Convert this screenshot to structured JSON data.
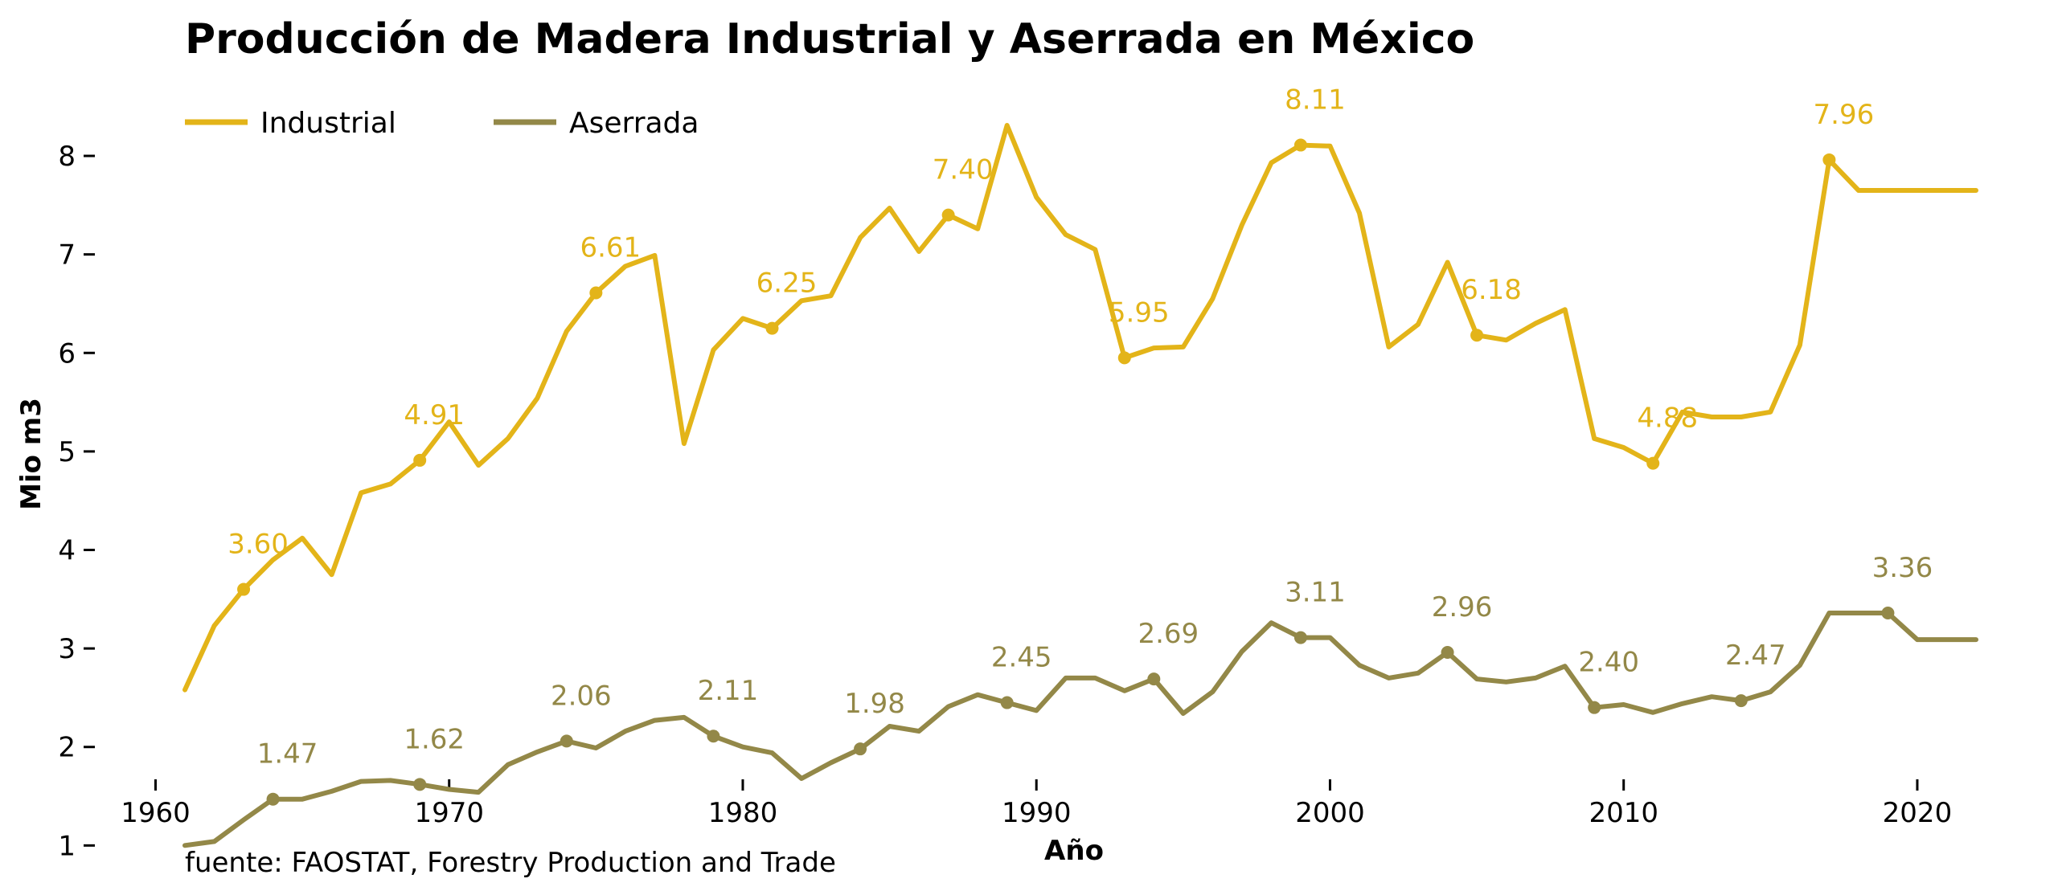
{
  "chart_data": {
    "type": "line",
    "title": "Producción de Madera Industrial y Aserrada en México",
    "xlabel": "Año",
    "ylabel": "Mio m3",
    "source": "fuente: FAOSTAT, Forestry Production and Trade",
    "xlim": [
      1961,
      2022
    ],
    "ylim": [
      0.75,
      8.4
    ],
    "x_ticks": [
      1960,
      1970,
      1980,
      1990,
      2000,
      2010,
      2020
    ],
    "y_ticks": [
      1,
      2,
      3,
      4,
      5,
      6,
      7,
      8
    ],
    "grid": false,
    "legend_position": "top-left",
    "x": [
      1961,
      1962,
      1963,
      1964,
      1965,
      1966,
      1967,
      1968,
      1969,
      1970,
      1971,
      1972,
      1973,
      1974,
      1975,
      1976,
      1977,
      1978,
      1979,
      1980,
      1981,
      1982,
      1983,
      1984,
      1985,
      1986,
      1987,
      1988,
      1989,
      1990,
      1991,
      1992,
      1993,
      1994,
      1995,
      1996,
      1997,
      1998,
      1999,
      2000,
      2001,
      2002,
      2003,
      2004,
      2005,
      2006,
      2007,
      2008,
      2009,
      2010,
      2011,
      2012,
      2013,
      2014,
      2015,
      2016,
      2017,
      2018,
      2019,
      2020,
      2021,
      2022
    ],
    "series": [
      {
        "name": "Industrial",
        "color": "#E3B419",
        "values": [
          2.58,
          3.23,
          3.6,
          3.9,
          4.12,
          3.75,
          4.58,
          4.67,
          4.91,
          5.3,
          4.86,
          5.13,
          5.54,
          6.22,
          6.61,
          6.88,
          6.99,
          5.08,
          6.03,
          6.35,
          6.25,
          6.53,
          6.58,
          7.17,
          7.47,
          7.03,
          7.4,
          7.26,
          8.31,
          7.58,
          7.2,
          7.05,
          5.95,
          6.05,
          6.06,
          6.55,
          7.3,
          7.93,
          8.11,
          8.1,
          7.42,
          6.06,
          6.29,
          6.92,
          6.18,
          6.13,
          6.3,
          6.44,
          5.13,
          5.04,
          4.88,
          5.4,
          5.35,
          5.35,
          5.4,
          6.08,
          7.96,
          7.65,
          7.65,
          7.65,
          7.65,
          7.65
        ],
        "labels": [
          {
            "x": 1963,
            "text": "3.60"
          },
          {
            "x": 1969,
            "text": "4.91"
          },
          {
            "x": 1975,
            "text": "6.61"
          },
          {
            "x": 1981,
            "text": "6.25"
          },
          {
            "x": 1987,
            "text": "7.40"
          },
          {
            "x": 1993,
            "text": "5.95"
          },
          {
            "x": 1999,
            "text": "8.11"
          },
          {
            "x": 2005,
            "text": "6.18"
          },
          {
            "x": 2011,
            "text": "4.88"
          },
          {
            "x": 2017,
            "text": "7.96"
          }
        ]
      },
      {
        "name": "Aserrada",
        "color": "#938848",
        "values": [
          1.0,
          1.04,
          1.26,
          1.47,
          1.47,
          1.55,
          1.65,
          1.66,
          1.62,
          1.57,
          1.54,
          1.82,
          1.95,
          2.06,
          1.99,
          2.16,
          2.27,
          2.3,
          2.11,
          2.0,
          1.94,
          1.68,
          1.84,
          1.98,
          2.21,
          2.16,
          2.41,
          2.53,
          2.45,
          2.37,
          2.7,
          2.7,
          2.57,
          2.69,
          2.34,
          2.56,
          2.97,
          3.26,
          3.11,
          3.11,
          2.83,
          2.7,
          2.75,
          2.96,
          2.69,
          2.66,
          2.7,
          2.82,
          2.4,
          2.43,
          2.35,
          2.44,
          2.51,
          2.47,
          2.56,
          2.83,
          3.36,
          3.36,
          3.36,
          3.09,
          3.09,
          3.09
        ],
        "labels": [
          {
            "x": 1964,
            "text": "1.47"
          },
          {
            "x": 1969,
            "text": "1.62"
          },
          {
            "x": 1974,
            "text": "2.06"
          },
          {
            "x": 1979,
            "text": "2.11"
          },
          {
            "x": 1984,
            "text": "1.98"
          },
          {
            "x": 1989,
            "text": "2.45"
          },
          {
            "x": 1994,
            "text": "2.69"
          },
          {
            "x": 1999,
            "text": "3.11"
          },
          {
            "x": 2004,
            "text": "2.96"
          },
          {
            "x": 2009,
            "text": "2.40"
          },
          {
            "x": 2014,
            "text": "2.47"
          },
          {
            "x": 2019,
            "text": "3.36"
          }
        ]
      }
    ]
  }
}
